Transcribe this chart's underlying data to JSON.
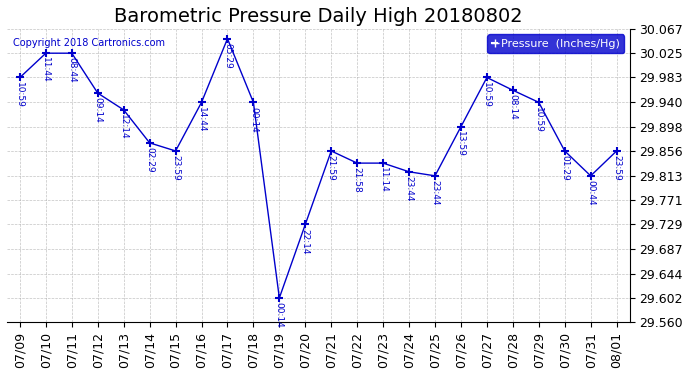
{
  "title": "Barometric Pressure Daily High 20180802",
  "ylabel": "Pressure  (Inches/Hg)",
  "copyright": "Copyright 2018 Cartronics.com",
  "line_color": "#0000cc",
  "marker_color": "#0000cc",
  "background_color": "#ffffff",
  "grid_color": "#aaaaaa",
  "legend_bg": "#0000cc",
  "legend_text_color": "#ffffff",
  "ylim": [
    29.56,
    30.067
  ],
  "yticks": [
    29.56,
    29.602,
    29.644,
    29.687,
    29.729,
    29.771,
    29.813,
    29.856,
    29.898,
    29.94,
    29.983,
    30.025,
    30.067
  ],
  "dates": [
    "07/09",
    "07/10",
    "07/11",
    "07/12",
    "07/13",
    "07/14",
    "07/15",
    "07/16",
    "07/17",
    "07/18",
    "07/19",
    "07/20",
    "07/21",
    "07/22",
    "07/23",
    "07/24",
    "07/25",
    "07/26",
    "07/27",
    "07/28",
    "07/29",
    "07/30",
    "07/31",
    "08/01"
  ],
  "x_indices": [
    0,
    1,
    2,
    3,
    4,
    5,
    6,
    7,
    8,
    9,
    10,
    11,
    12,
    13,
    14,
    15,
    16,
    17,
    18,
    19,
    20,
    21,
    22,
    23
  ],
  "values": [
    29.983,
    30.025,
    30.025,
    29.956,
    29.927,
    29.87,
    29.856,
    29.94,
    30.05,
    29.94,
    29.602,
    29.729,
    29.856,
    29.835,
    29.835,
    29.82,
    29.813,
    29.898,
    29.983,
    29.961,
    29.94,
    29.856,
    29.813,
    29.856
  ],
  "time_labels": [
    "10:59",
    "11:44",
    "08:44",
    "09:14",
    "12:14",
    "02:29",
    "23:59",
    "14:44",
    "05:29",
    "00:14",
    "00:14",
    "22:14",
    "21:59",
    "21:58",
    "11:14",
    "23:44",
    "23:44",
    "13:59",
    "10:59",
    "08:14",
    "10:59",
    "01:29",
    "00:44",
    "23:59"
  ],
  "title_fontsize": 14,
  "tick_fontsize": 9,
  "label_fontsize": 9
}
